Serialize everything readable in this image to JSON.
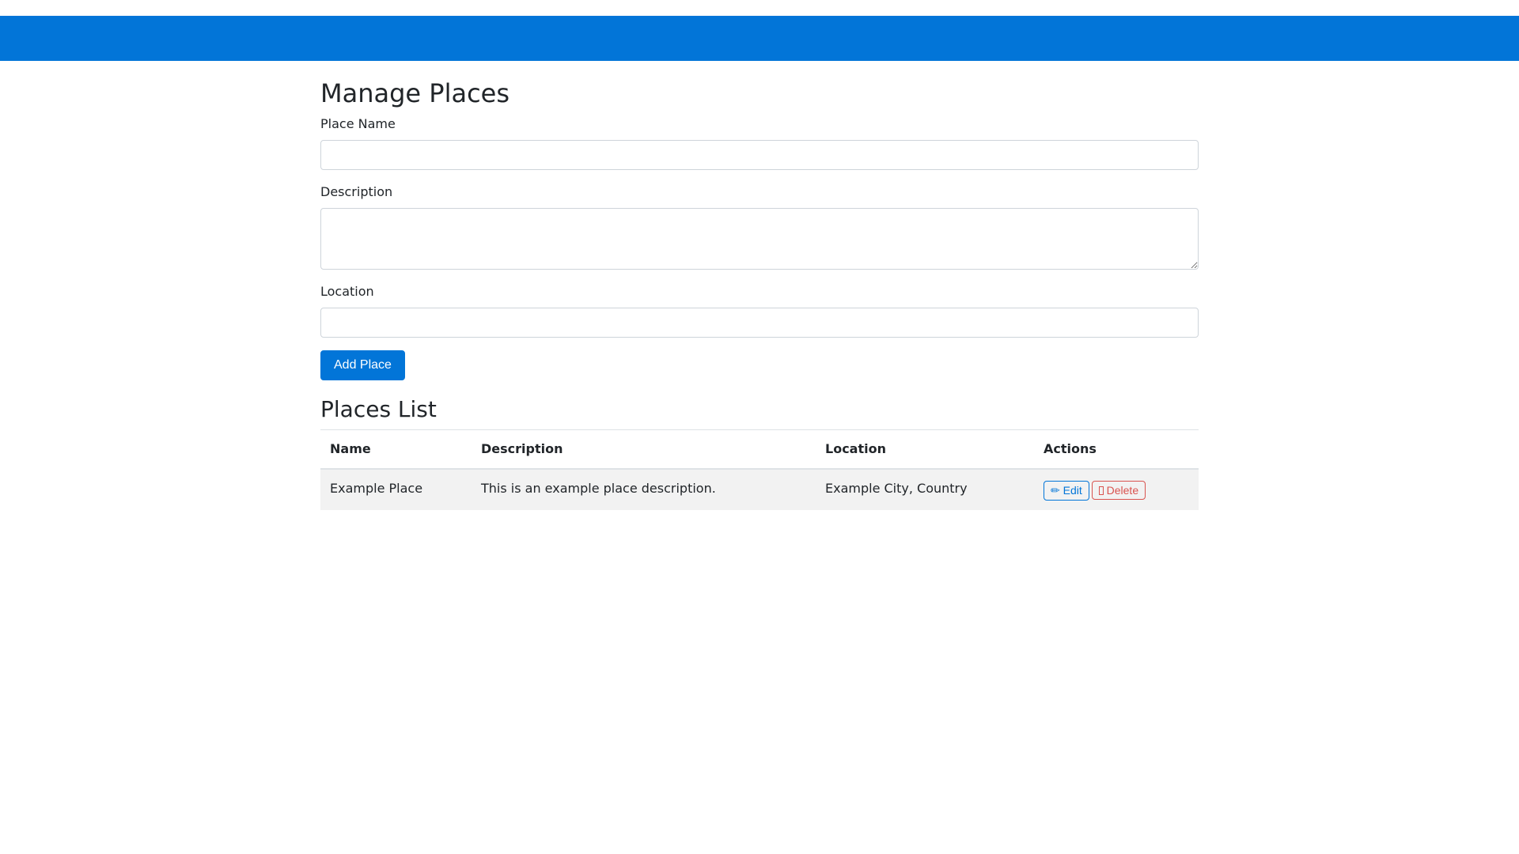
{
  "colors": {
    "navbar": "#0275d8",
    "primary": "#0275d8",
    "danger": "#d9534f"
  },
  "page_title": "Manage Places",
  "form": {
    "name_label": "Place Name",
    "name_value": "",
    "description_label": "Description",
    "description_value": "",
    "location_label": "Location",
    "location_value": "",
    "submit_label": "Add Place"
  },
  "list": {
    "title": "Places List",
    "columns": [
      "Name",
      "Description",
      "Location",
      "Actions"
    ],
    "rows": [
      {
        "name": "Example Place",
        "description": "This is an example place description.",
        "location": "Example City, Country",
        "edit_icon": "✏",
        "edit_label": "Edit",
        "delete_icon": "trash-icon",
        "delete_label": "Delete"
      }
    ]
  }
}
